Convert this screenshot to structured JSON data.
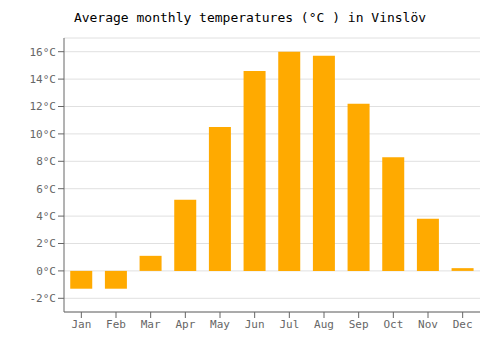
{
  "chart_data": {
    "type": "bar",
    "title": "Average monthly temperatures (°C ) in Vinslöv",
    "categories": [
      "Jan",
      "Feb",
      "Mar",
      "Apr",
      "May",
      "Jun",
      "Jul",
      "Aug",
      "Sep",
      "Oct",
      "Nov",
      "Dec"
    ],
    "values": [
      -1.3,
      -1.3,
      1.1,
      5.2,
      10.5,
      14.6,
      16.0,
      15.7,
      12.2,
      8.3,
      3.8,
      0.2
    ],
    "color": "#FFAA00",
    "ylim": [
      -3.0,
      17.0
    ],
    "yticks": [
      {
        "value": -2,
        "label": "-2°C"
      },
      {
        "value": 0,
        "label": "0°C"
      },
      {
        "value": 2,
        "label": "2°C"
      },
      {
        "value": 4,
        "label": "4°C"
      },
      {
        "value": 6,
        "label": "6°C"
      },
      {
        "value": 8,
        "label": "8°C"
      },
      {
        "value": 10,
        "label": "10°C"
      },
      {
        "value": 12,
        "label": "12°C"
      },
      {
        "value": 14,
        "label": "14°C"
      },
      {
        "value": 16,
        "label": "16°C"
      }
    ],
    "grid": true
  }
}
